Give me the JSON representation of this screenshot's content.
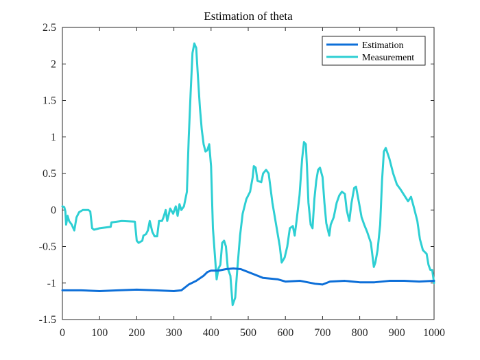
{
  "chart_data": {
    "type": "line",
    "title": "Estimation of theta",
    "xlabel": "",
    "ylabel": "",
    "xlim": [
      0,
      1000
    ],
    "ylim": [
      -1.5,
      2.5
    ],
    "xticks": [
      0,
      100,
      200,
      300,
      400,
      500,
      600,
      700,
      800,
      900,
      1000
    ],
    "yticks": [
      2.5,
      2,
      1.5,
      1,
      0.5,
      0,
      -0.5,
      -1,
      -1.5
    ],
    "grid": false,
    "legend_position": "top-right",
    "series": [
      {
        "name": "Estimation",
        "color": "#0d6fd8",
        "points": [
          [
            0,
            -1.1
          ],
          [
            50,
            -1.1
          ],
          [
            100,
            -1.11
          ],
          [
            150,
            -1.1
          ],
          [
            200,
            -1.09
          ],
          [
            250,
            -1.1
          ],
          [
            300,
            -1.11
          ],
          [
            320,
            -1.1
          ],
          [
            340,
            -1.02
          ],
          [
            360,
            -0.97
          ],
          [
            380,
            -0.9
          ],
          [
            390,
            -0.85
          ],
          [
            400,
            -0.83
          ],
          [
            420,
            -0.83
          ],
          [
            440,
            -0.81
          ],
          [
            460,
            -0.8
          ],
          [
            480,
            -0.81
          ],
          [
            500,
            -0.85
          ],
          [
            520,
            -0.89
          ],
          [
            540,
            -0.93
          ],
          [
            580,
            -0.95
          ],
          [
            600,
            -0.98
          ],
          [
            640,
            -0.97
          ],
          [
            680,
            -1.01
          ],
          [
            700,
            -1.02
          ],
          [
            720,
            -0.98
          ],
          [
            760,
            -0.97
          ],
          [
            800,
            -0.99
          ],
          [
            840,
            -0.99
          ],
          [
            880,
            -0.97
          ],
          [
            920,
            -0.97
          ],
          [
            960,
            -0.98
          ],
          [
            1000,
            -0.97
          ]
        ]
      },
      {
        "name": "Measurement",
        "color": "#2ecfd3",
        "points": [
          [
            0,
            0.05
          ],
          [
            5,
            0.04
          ],
          [
            8,
            -0.02
          ],
          [
            10,
            -0.2
          ],
          [
            14,
            -0.08
          ],
          [
            18,
            -0.15
          ],
          [
            25,
            -0.2
          ],
          [
            32,
            -0.28
          ],
          [
            38,
            -0.1
          ],
          [
            45,
            -0.03
          ],
          [
            55,
            0.0
          ],
          [
            70,
            0.0
          ],
          [
            75,
            -0.02
          ],
          [
            80,
            -0.25
          ],
          [
            85,
            -0.27
          ],
          [
            100,
            -0.25
          ],
          [
            130,
            -0.23
          ],
          [
            132,
            -0.17
          ],
          [
            160,
            -0.15
          ],
          [
            195,
            -0.16
          ],
          [
            200,
            -0.42
          ],
          [
            205,
            -0.45
          ],
          [
            215,
            -0.42
          ],
          [
            218,
            -0.35
          ],
          [
            225,
            -0.33
          ],
          [
            230,
            -0.28
          ],
          [
            235,
            -0.15
          ],
          [
            242,
            -0.3
          ],
          [
            248,
            -0.36
          ],
          [
            255,
            -0.36
          ],
          [
            260,
            -0.15
          ],
          [
            268,
            -0.15
          ],
          [
            272,
            -0.1
          ],
          [
            278,
            0.0
          ],
          [
            282,
            -0.15
          ],
          [
            290,
            0.02
          ],
          [
            298,
            -0.05
          ],
          [
            305,
            0.05
          ],
          [
            310,
            -0.08
          ],
          [
            315,
            0.08
          ],
          [
            320,
            0.0
          ],
          [
            327,
            0.05
          ],
          [
            335,
            0.25
          ],
          [
            340,
            1.0
          ],
          [
            345,
            1.6
          ],
          [
            350,
            2.15
          ],
          [
            355,
            2.28
          ],
          [
            360,
            2.22
          ],
          [
            365,
            1.8
          ],
          [
            370,
            1.4
          ],
          [
            375,
            1.1
          ],
          [
            380,
            0.9
          ],
          [
            385,
            0.8
          ],
          [
            390,
            0.82
          ],
          [
            395,
            0.9
          ],
          [
            400,
            0.6
          ],
          [
            405,
            -0.25
          ],
          [
            410,
            -0.6
          ],
          [
            415,
            -0.95
          ],
          [
            420,
            -0.8
          ],
          [
            425,
            -0.75
          ],
          [
            430,
            -0.45
          ],
          [
            435,
            -0.42
          ],
          [
            440,
            -0.5
          ],
          [
            445,
            -0.8
          ],
          [
            452,
            -0.9
          ],
          [
            458,
            -1.3
          ],
          [
            465,
            -1.2
          ],
          [
            470,
            -0.85
          ],
          [
            478,
            -0.35
          ],
          [
            485,
            -0.05
          ],
          [
            495,
            0.15
          ],
          [
            505,
            0.25
          ],
          [
            512,
            0.45
          ],
          [
            515,
            0.6
          ],
          [
            520,
            0.58
          ],
          [
            525,
            0.4
          ],
          [
            535,
            0.38
          ],
          [
            540,
            0.5
          ],
          [
            548,
            0.55
          ],
          [
            555,
            0.5
          ],
          [
            565,
            0.1
          ],
          [
            575,
            -0.2
          ],
          [
            585,
            -0.5
          ],
          [
            590,
            -0.72
          ],
          [
            598,
            -0.65
          ],
          [
            605,
            -0.5
          ],
          [
            612,
            -0.25
          ],
          [
            620,
            -0.22
          ],
          [
            625,
            -0.35
          ],
          [
            630,
            -0.15
          ],
          [
            638,
            0.2
          ],
          [
            645,
            0.7
          ],
          [
            650,
            0.93
          ],
          [
            655,
            0.9
          ],
          [
            658,
            0.6
          ],
          [
            662,
            0.1
          ],
          [
            668,
            -0.2
          ],
          [
            673,
            -0.25
          ],
          [
            678,
            0.15
          ],
          [
            683,
            0.4
          ],
          [
            688,
            0.55
          ],
          [
            693,
            0.58
          ],
          [
            700,
            0.45
          ],
          [
            705,
            0.1
          ],
          [
            710,
            -0.18
          ],
          [
            718,
            -0.35
          ],
          [
            722,
            -0.2
          ],
          [
            730,
            -0.1
          ],
          [
            738,
            0.1
          ],
          [
            745,
            0.2
          ],
          [
            752,
            0.25
          ],
          [
            760,
            0.22
          ],
          [
            765,
            0.0
          ],
          [
            772,
            -0.15
          ],
          [
            778,
            0.1
          ],
          [
            785,
            0.3
          ],
          [
            790,
            0.32
          ],
          [
            798,
            0.1
          ],
          [
            805,
            -0.1
          ],
          [
            812,
            -0.2
          ],
          [
            820,
            -0.3
          ],
          [
            830,
            -0.45
          ],
          [
            838,
            -0.78
          ],
          [
            842,
            -0.72
          ],
          [
            848,
            -0.55
          ],
          [
            855,
            -0.2
          ],
          [
            860,
            0.4
          ],
          [
            865,
            0.8
          ],
          [
            870,
            0.85
          ],
          [
            880,
            0.7
          ],
          [
            890,
            0.5
          ],
          [
            900,
            0.35
          ],
          [
            910,
            0.28
          ],
          [
            920,
            0.2
          ],
          [
            930,
            0.12
          ],
          [
            938,
            0.18
          ],
          [
            945,
            0.05
          ],
          [
            955,
            -0.15
          ],
          [
            962,
            -0.4
          ],
          [
            970,
            -0.55
          ],
          [
            980,
            -0.6
          ],
          [
            985,
            -0.75
          ],
          [
            990,
            -0.82
          ],
          [
            995,
            -0.82
          ],
          [
            1000,
            -1.0
          ]
        ]
      }
    ]
  }
}
